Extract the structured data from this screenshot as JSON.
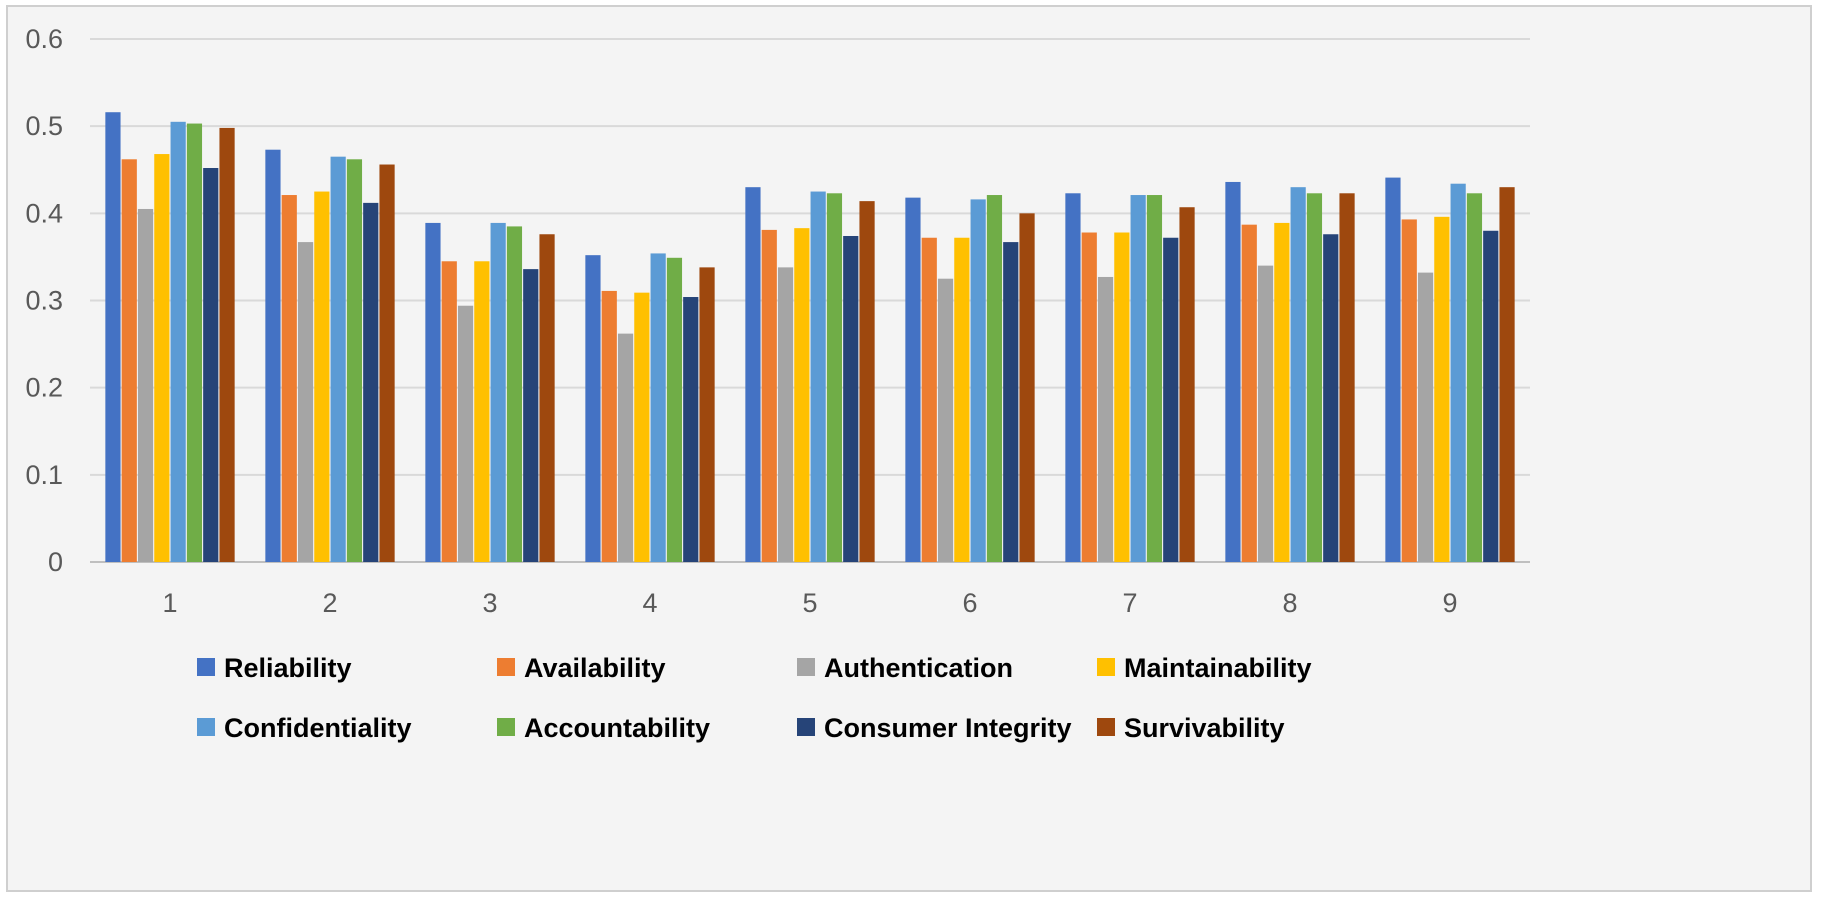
{
  "chart_data": {
    "type": "bar",
    "title": "",
    "xlabel": "",
    "ylabel": "",
    "ylim": [
      0,
      0.6
    ],
    "yticks": [
      "0",
      "0.1",
      "0.2",
      "0.3",
      "0.4",
      "0.5",
      "0.6"
    ],
    "categories": [
      "1",
      "2",
      "3",
      "4",
      "5",
      "6",
      "7",
      "8",
      "9"
    ],
    "grid": true,
    "legend_position": "bottom",
    "series": [
      {
        "name": "Reliability",
        "color": "#4472C4",
        "values": [
          0.516,
          0.473,
          0.389,
          0.352,
          0.43,
          0.418,
          0.423,
          0.436,
          0.441
        ]
      },
      {
        "name": "Availability",
        "color": "#ED7D31",
        "values": [
          0.462,
          0.421,
          0.345,
          0.311,
          0.381,
          0.372,
          0.378,
          0.387,
          0.393
        ]
      },
      {
        "name": "Authentication",
        "color": "#A5A5A5",
        "values": [
          0.405,
          0.367,
          0.294,
          0.262,
          0.338,
          0.325,
          0.327,
          0.34,
          0.332
        ]
      },
      {
        "name": "Maintainability",
        "color": "#FFC000",
        "values": [
          0.468,
          0.425,
          0.345,
          0.309,
          0.383,
          0.372,
          0.378,
          0.389,
          0.396
        ]
      },
      {
        "name": "Confidentiality",
        "color": "#5B9BD5",
        "values": [
          0.505,
          0.465,
          0.389,
          0.354,
          0.425,
          0.416,
          0.421,
          0.43,
          0.434
        ]
      },
      {
        "name": "Accountability",
        "color": "#70AD47",
        "values": [
          0.503,
          0.462,
          0.385,
          0.349,
          0.423,
          0.421,
          0.421,
          0.423,
          0.423
        ]
      },
      {
        "name": "Consumer Integrity",
        "color": "#264478",
        "values": [
          0.452,
          0.412,
          0.336,
          0.304,
          0.374,
          0.367,
          0.372,
          0.376,
          0.38
        ]
      },
      {
        "name": "Survivability",
        "color": "#9E480E",
        "values": [
          0.498,
          0.456,
          0.376,
          0.338,
          0.414,
          0.4,
          0.407,
          0.423,
          0.43
        ]
      }
    ]
  }
}
